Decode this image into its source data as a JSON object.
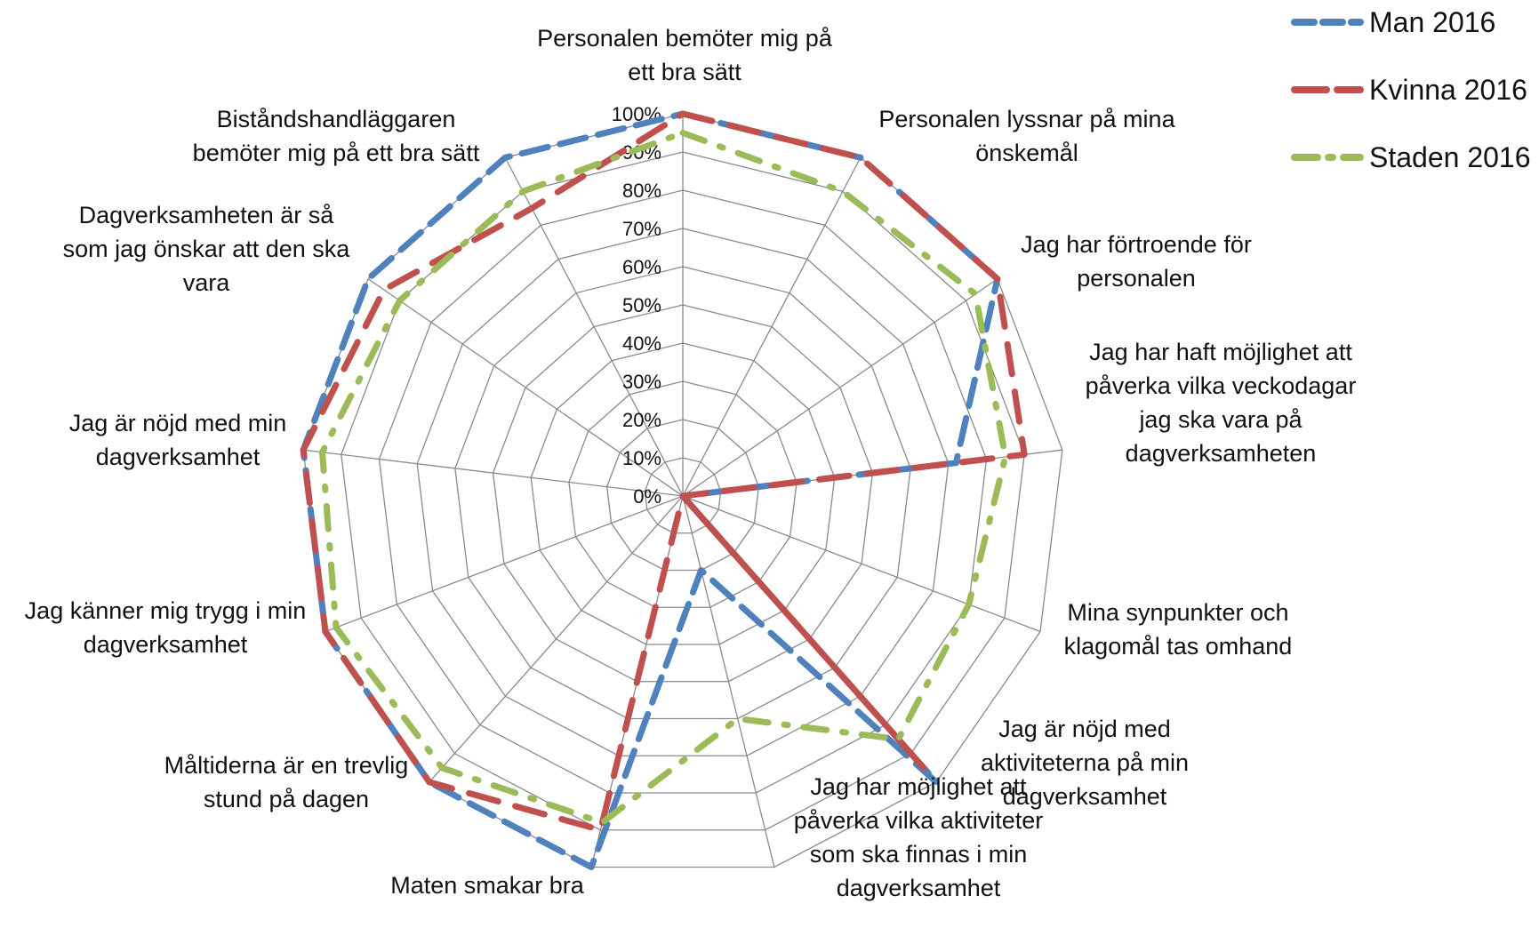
{
  "chart_data": {
    "type": "radar",
    "title": "",
    "r_range": [
      0,
      100
    ],
    "r_ticks": [
      "0%",
      "10%",
      "20%",
      "30%",
      "40%",
      "50%",
      "60%",
      "70%",
      "80%",
      "90%",
      "100%"
    ],
    "grid": true,
    "legend_position": "top-right",
    "categories": [
      "Personalen bemöter mig på ett bra sätt",
      "Personalen lyssnar på mina önskemål",
      "Jag har förtroende för personalen",
      "Jag har haft möjlighet att påverka vilka veckodagar jag ska vara på dagverksamheten",
      "Mina synpunkter och klagomål tas omhand",
      "Jag är nöjd med aktiviteterna på min dagverksamhet",
      "Jag har möjlighet att påverka vilka aktiviteter som ska finnas i min dagverksamhet",
      "Maten smakar bra",
      "Måltiderna är en trevlig stund på dagen",
      "Jag känner mig trygg i min dagverksamhet",
      "Jag är nöjd med min dagverksamhet",
      "Dagverksamheten är så som jag önskar att den ska vara",
      "Biståndshandläggaren bemöter mig på ett bra sätt"
    ],
    "series": [
      {
        "name": "Man 2016",
        "color": "#4F81BD",
        "values": [
          100,
          100,
          100,
          72,
          0,
          100,
          20,
          100,
          100,
          100,
          100,
          100,
          100
        ]
      },
      {
        "name": "Kvinna 2016",
        "color": "#C0504D",
        "values": [
          100,
          100,
          100,
          90,
          0,
          95,
          0,
          90,
          100,
          100,
          100,
          95,
          85
        ]
      },
      {
        "name": "Staden 2016",
        "color": "#9BBB59",
        "values": [
          95,
          90,
          93,
          85,
          80,
          85,
          60,
          88,
          95,
          97,
          95,
          90,
          90
        ]
      }
    ]
  }
}
